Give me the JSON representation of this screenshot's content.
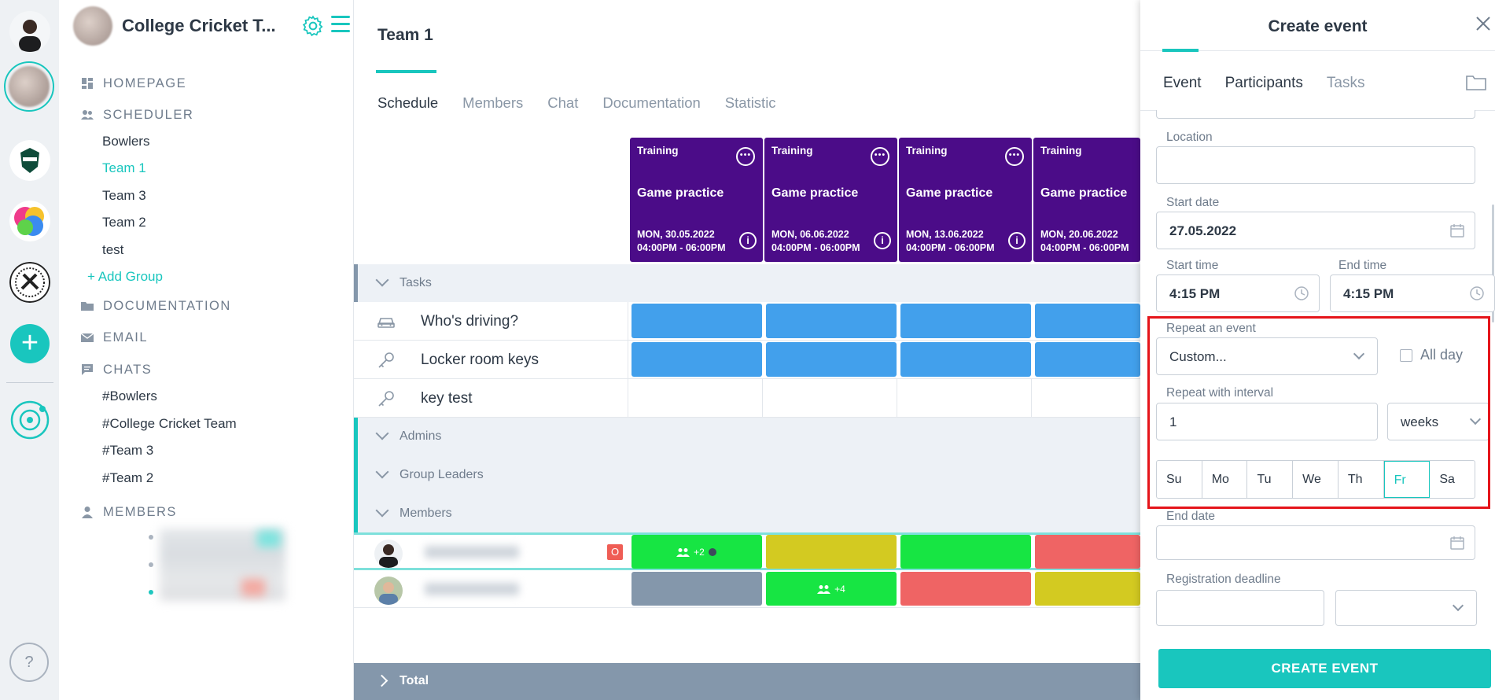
{
  "rail": {
    "help_label": "?"
  },
  "sidebar": {
    "group_title": "College Cricket T...",
    "homepage": "HOMEPAGE",
    "scheduler": "SCHEDULER",
    "scheduler_items": [
      "Bowlers",
      "Team 1",
      "Team 3",
      "Team 2",
      "test"
    ],
    "add_group": "+ Add Group",
    "documentation": "DOCUMENTATION",
    "email": "EMAIL",
    "chats": "CHATS",
    "chat_items": [
      "#Bowlers",
      "#College Cricket Team",
      "#Team 3",
      "#Team 2"
    ],
    "members": "MEMBERS"
  },
  "main": {
    "title": "Team 1",
    "tabs": [
      "Schedule",
      "Members",
      "Chat",
      "Documentation",
      "Statistic"
    ],
    "events": [
      {
        "type": "Training",
        "name": "Game practice",
        "date": "MON, 30.05.2022",
        "time": "04:00PM - 06:00PM"
      },
      {
        "type": "Training",
        "name": "Game practice",
        "date": "MON, 06.06.2022",
        "time": "04:00PM - 06:00PM"
      },
      {
        "type": "Training",
        "name": "Game practice",
        "date": "MON, 13.06.2022",
        "time": "04:00PM - 06:00PM"
      },
      {
        "type": "Training",
        "name": "Game practice",
        "date": "MON, 20.06.2022",
        "time": "04:00PM - 06:00PM"
      }
    ],
    "tasks_label": "Tasks",
    "tasks": [
      "Who's driving?",
      "Locker room keys",
      "key test"
    ],
    "admins_label": "Admins",
    "leaders_label": "Group Leaders",
    "members_label": "Members",
    "badge": "O",
    "plus2": "+2",
    "plus4": "+4",
    "total_label": "Total",
    "colors": {
      "blue": "#42a0ec",
      "green": "#17e543",
      "yellow": "#d3ca21",
      "red": "#ef6464",
      "gray": "#8497ab",
      "purple": "#4b0c88"
    }
  },
  "panel": {
    "title": "Create event",
    "tabs": [
      "Event",
      "Participants",
      "Tasks"
    ],
    "location_label": "Location",
    "location_value": "",
    "start_date_label": "Start date",
    "start_date_value": "27.05.2022",
    "start_time_label": "Start time",
    "start_time_value": "4:15 PM",
    "end_time_label": "End time",
    "end_time_value": "4:15 PM",
    "repeat_label": "Repeat an event",
    "repeat_value": "Custom...",
    "allday_label": "All day",
    "interval_label": "Repeat with interval",
    "interval_value": "1",
    "interval_unit": "weeks",
    "days": [
      "Su",
      "Mo",
      "Tu",
      "We",
      "Th",
      "Fr",
      "Sa"
    ],
    "end_date_label": "End date",
    "deadline_label": "Registration deadline",
    "create_button": "CREATE EVENT"
  }
}
